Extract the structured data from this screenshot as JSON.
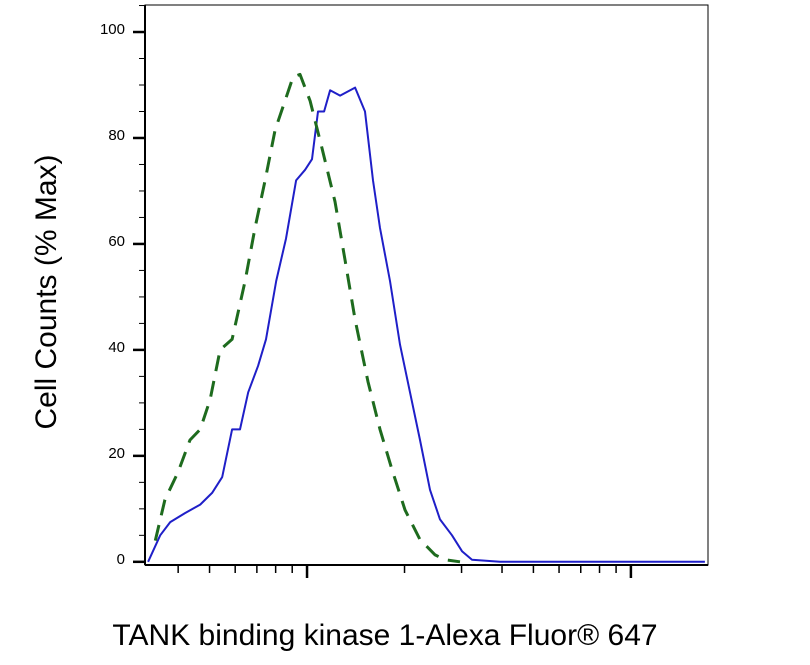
{
  "chart_data": {
    "type": "line",
    "xlabel": "TANK binding kinase 1-Alexa Fluor® 647",
    "ylabel": "Cell Counts (% Max)",
    "xscale": "log",
    "xlim": [
      31.6,
      1730
    ],
    "xticks": [
      100,
      1000
    ],
    "ylim": [
      -0.6,
      105.1
    ],
    "yticks": [
      0,
      20,
      40,
      60,
      80,
      100
    ],
    "yminor_step": 5,
    "series": [
      {
        "color": "#1f1fc8",
        "dash": false,
        "x": [
          32.3,
          35.2,
          37.8,
          42.0,
          46.8,
          50.9,
          54.7,
          58.7,
          62.1,
          65.8,
          70.6,
          74.7,
          80.3,
          86.1,
          92.5,
          98.6,
          103.6,
          108.1,
          112.9,
          117.8,
          126.5,
          140.7,
          151.0,
          159.8,
          168.0,
          180.4,
          193.6,
          207.9,
          223.3,
          239.7,
          257.4,
          280.3,
          300.9,
          323.1,
          394.2,
          1692
        ],
        "values": [
          0,
          5,
          7.5,
          9.2,
          10.8,
          13,
          16,
          25,
          25,
          32,
          37,
          42,
          53,
          61,
          72,
          74,
          76,
          85,
          85,
          89,
          88,
          89.5,
          85,
          72,
          63,
          53,
          41,
          32,
          23,
          13.6,
          8,
          5,
          2,
          0.4,
          0,
          0
        ]
      },
      {
        "color": "#1e6b1e",
        "dash": true,
        "x": [
          34.0,
          36.4,
          40.0,
          43.5,
          46.8,
          50.2,
          53.9,
          58.7,
          64.4,
          69.1,
          74.2,
          79.7,
          85.5,
          90.5,
          95.1,
          102.2,
          111.3,
          122.0,
          131.0,
          140.7,
          154.3,
          168.0,
          183.0,
          200.7,
          223.3,
          248.5,
          266.7,
          296.7
        ],
        "values": [
          4,
          11.7,
          17,
          23,
          25,
          30.6,
          40,
          42,
          53,
          63,
          72,
          81.5,
          87,
          91.5,
          92,
          87,
          78,
          68,
          57,
          45.7,
          34,
          25,
          17.4,
          9.8,
          4.2,
          1.3,
          0.4,
          0
        ]
      }
    ]
  }
}
